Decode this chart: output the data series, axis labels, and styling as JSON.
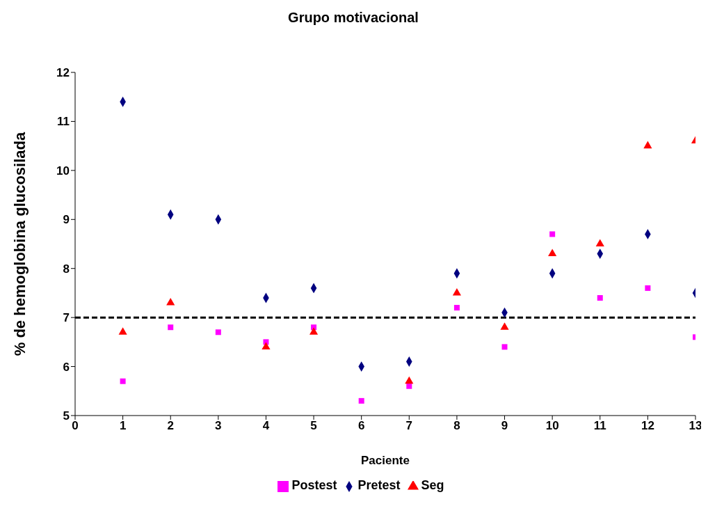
{
  "chart_data": {
    "type": "scatter",
    "title": "Grupo motivacional",
    "xlabel": "Paciente",
    "ylabel": "% de hemoglobina glucosilada",
    "x": [
      1,
      2,
      3,
      4,
      5,
      6,
      7,
      8,
      9,
      10,
      11,
      12,
      13
    ],
    "series": [
      {
        "name": "Pretest",
        "color": "#000080",
        "marker": "diamond",
        "values": [
          11.4,
          9.1,
          9.0,
          7.4,
          7.6,
          6.0,
          6.1,
          7.9,
          7.1,
          7.9,
          8.3,
          8.7,
          7.5
        ]
      },
      {
        "name": "Postest",
        "color": "#ff00ff",
        "marker": "square",
        "values": [
          5.7,
          6.8,
          6.7,
          6.5,
          6.8,
          5.3,
          5.6,
          7.2,
          6.4,
          8.7,
          7.4,
          7.6,
          6.6
        ]
      },
      {
        "name": "Seg",
        "color": "#ff0000",
        "marker": "triangle",
        "values": [
          6.7,
          7.3,
          null,
          6.4,
          6.7,
          null,
          5.7,
          7.5,
          6.8,
          8.3,
          8.5,
          10.5,
          10.6
        ]
      }
    ],
    "xlim": [
      0,
      13
    ],
    "xticks": [
      0,
      1,
      2,
      3,
      4,
      5,
      6,
      7,
      8,
      9,
      10,
      11,
      12,
      13
    ],
    "ylim": [
      5,
      12
    ],
    "yticks": [
      5,
      6,
      7,
      8,
      9,
      10,
      11,
      12
    ],
    "ref_lines": [
      {
        "axis": "y",
        "value": 7,
        "color": "#000000",
        "line_style": "dashed"
      }
    ],
    "grid": false,
    "legend": "bottom"
  }
}
